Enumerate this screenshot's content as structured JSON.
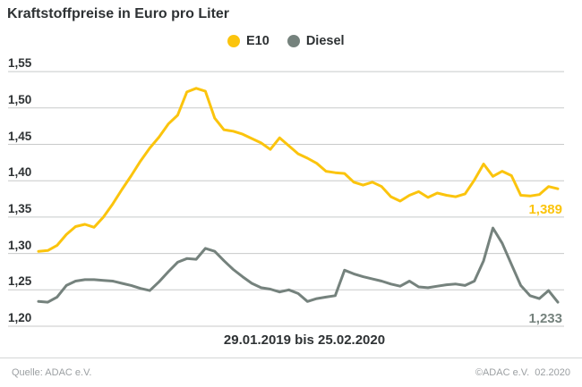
{
  "chart_data": {
    "type": "line",
    "title": "Kraftstoffpreise in Euro pro Liter",
    "x_range_label": "29.01.2019 bis 25.02.2020",
    "x_start": "29.01.2019",
    "x_end": "25.02.2020",
    "x_interval": "weekly",
    "ylabel": "Euro pro Liter",
    "ylim": [
      1.2,
      1.55
    ],
    "grid": "horizontal",
    "legend_position": "top-center",
    "yticks": [
      {
        "value": 1.55,
        "label": "1,55"
      },
      {
        "value": 1.5,
        "label": "1,50"
      },
      {
        "value": 1.45,
        "label": "1,45"
      },
      {
        "value": 1.4,
        "label": "1,40"
      },
      {
        "value": 1.35,
        "label": "1,35"
      },
      {
        "value": 1.3,
        "label": "1,30"
      },
      {
        "value": 1.25,
        "label": "1,25"
      },
      {
        "value": 1.2,
        "label": "1,20"
      }
    ],
    "series": [
      {
        "name": "E10",
        "color": "#fbc40d",
        "end_label": "1,389",
        "last_value": 1.389,
        "values": [
          1.303,
          1.304,
          1.311,
          1.326,
          1.337,
          1.34,
          1.336,
          1.35,
          1.368,
          1.388,
          1.407,
          1.427,
          1.445,
          1.46,
          1.478,
          1.49,
          1.522,
          1.527,
          1.523,
          1.486,
          1.47,
          1.468,
          1.464,
          1.458,
          1.452,
          1.443,
          1.459,
          1.448,
          1.437,
          1.431,
          1.424,
          1.413,
          1.411,
          1.41,
          1.398,
          1.394,
          1.398,
          1.392,
          1.378,
          1.372,
          1.38,
          1.385,
          1.377,
          1.383,
          1.38,
          1.378,
          1.382,
          1.401,
          1.423,
          1.406,
          1.413,
          1.407,
          1.38,
          1.379,
          1.381,
          1.392,
          1.389
        ]
      },
      {
        "name": "Diesel",
        "color": "#75827d",
        "end_label": "1,233",
        "last_value": 1.233,
        "values": [
          1.234,
          1.233,
          1.24,
          1.256,
          1.262,
          1.264,
          1.264,
          1.263,
          1.262,
          1.259,
          1.256,
          1.252,
          1.249,
          1.261,
          1.275,
          1.288,
          1.293,
          1.292,
          1.307,
          1.303,
          1.29,
          1.278,
          1.268,
          1.259,
          1.253,
          1.251,
          1.247,
          1.25,
          1.245,
          1.234,
          1.238,
          1.24,
          1.242,
          1.277,
          1.272,
          1.268,
          1.265,
          1.262,
          1.258,
          1.255,
          1.262,
          1.254,
          1.253,
          1.255,
          1.257,
          1.258,
          1.256,
          1.262,
          1.29,
          1.335,
          1.314,
          1.285,
          1.256,
          1.242,
          1.238,
          1.249,
          1.233
        ]
      }
    ]
  },
  "footer": {
    "source": "Quelle: ADAC e.V.",
    "copyright": "©ADAC e.V.  02.2020"
  },
  "style": {
    "grid_color": "#c8caca",
    "text_color": "#2e3234",
    "footer_text_color": "#9b9fa2"
  }
}
